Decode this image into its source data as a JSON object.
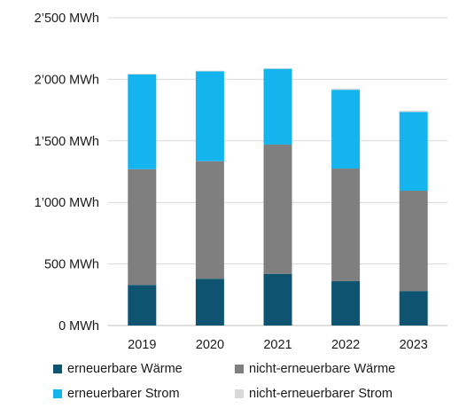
{
  "chart_data": {
    "type": "bar",
    "stacked": true,
    "title": "",
    "xlabel": "",
    "ylabel": "",
    "categories": [
      "2019",
      "2020",
      "2021",
      "2022",
      "2023"
    ],
    "series": [
      {
        "name": "erneuerbare Wärme",
        "color": "#0e5470",
        "values": [
          330,
          380,
          420,
          360,
          280
        ]
      },
      {
        "name": "nicht-erneuerbare Wärme",
        "color": "#7f7f7f",
        "values": [
          940,
          955,
          1050,
          915,
          815
        ]
      },
      {
        "name": "erneuerbarer Strom",
        "color": "#14b4ef",
        "values": [
          770,
          730,
          615,
          640,
          640
        ]
      },
      {
        "name": "nicht-erneuerbarer Strom",
        "color": "#d9d9d9",
        "values": [
          5,
          5,
          5,
          10,
          10
        ]
      }
    ],
    "ylim": [
      0,
      2500
    ],
    "yticks": [
      0,
      500,
      1000,
      1500,
      2000,
      2500
    ],
    "ytick_labels": [
      "0 MWh",
      "500 MWh",
      "1’000 MWh",
      "1’500 MWh",
      "2’000 MWh",
      "2’500 MWh"
    ],
    "grid": true,
    "legend_position": "bottom"
  }
}
